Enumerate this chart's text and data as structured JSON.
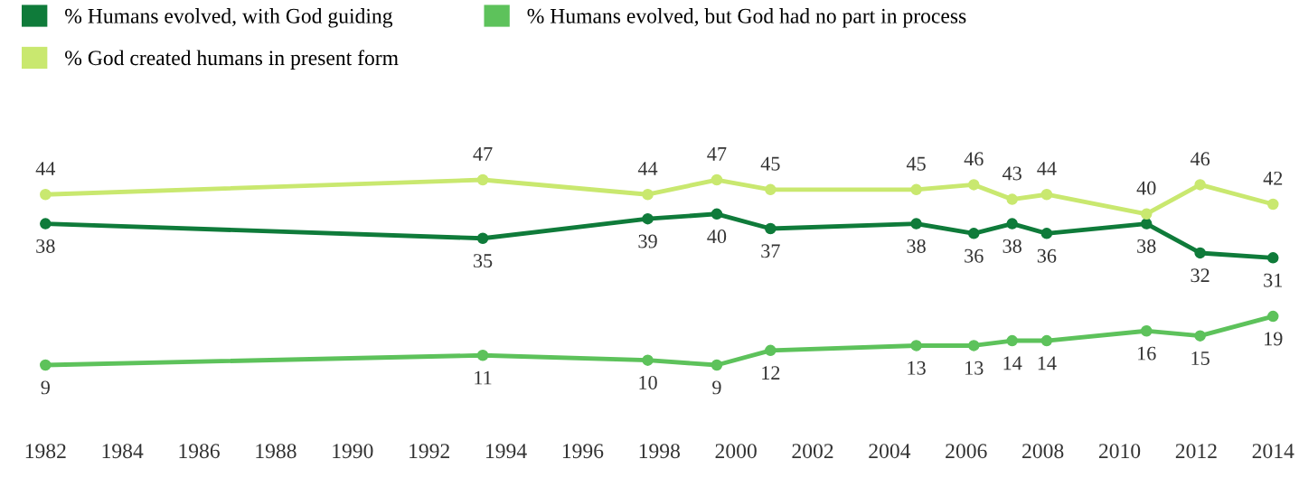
{
  "chart_data": {
    "type": "line",
    "x": [
      1982,
      1993.4,
      1997.7,
      1999.5,
      2000.9,
      2004.7,
      2006.2,
      2007.2,
      2008.1,
      2010.7,
      2012.1,
      2014
    ],
    "series": [
      {
        "name": "% Humans evolved, with God guiding",
        "color": "#0f7b3a",
        "values": [
          38,
          35,
          39,
          40,
          37,
          38,
          36,
          38,
          36,
          38,
          32,
          31
        ]
      },
      {
        "name": "% Humans evolved, but God had no part in process",
        "color": "#5dc25b",
        "values": [
          9,
          11,
          10,
          9,
          12,
          13,
          13,
          14,
          14,
          16,
          15,
          19
        ]
      },
      {
        "name": "% God created humans in present form",
        "color": "#c9e86f",
        "values": [
          44,
          47,
          44,
          47,
          45,
          45,
          46,
          43,
          44,
          40,
          46,
          42
        ]
      }
    ],
    "xlim": [
      1982,
      2014
    ],
    "xticks": [
      1982,
      1984,
      1986,
      1988,
      1990,
      1992,
      1994,
      1996,
      1998,
      2000,
      2002,
      2004,
      2006,
      2008,
      2010,
      2012,
      2014
    ],
    "tick_labels": "x",
    "data_labels": true,
    "marker": "circle",
    "line_style": "solid",
    "grid": false,
    "legend": "top left"
  }
}
